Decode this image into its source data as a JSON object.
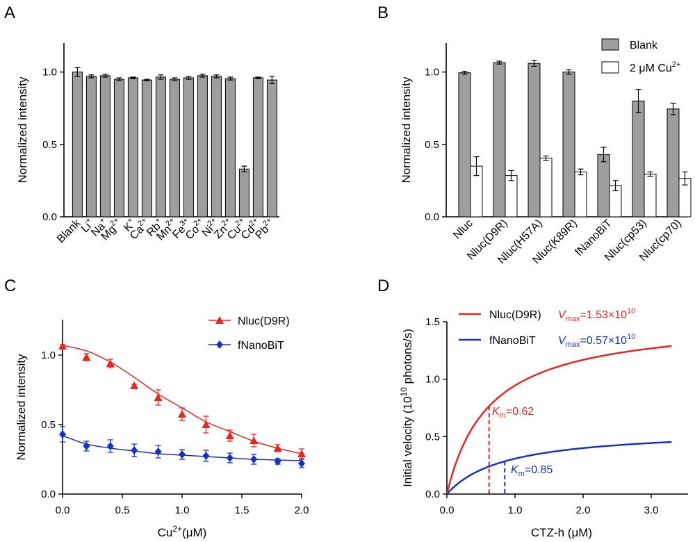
{
  "chart_data": [
    {
      "panel": "A",
      "type": "bar",
      "ylabel": "Normalized intensity",
      "ylim": [
        0,
        1.2
      ],
      "yticks": [
        "0.0",
        "0.5",
        "1.0"
      ],
      "categories": [
        {
          "base": "Blank",
          "sup": ""
        },
        {
          "base": "Li",
          "sup": "+"
        },
        {
          "base": "Na",
          "sup": "+"
        },
        {
          "base": "Mg",
          "sup": "2+"
        },
        {
          "base": "K",
          "sup": "+"
        },
        {
          "base": "Ca",
          "sup": "2+"
        },
        {
          "base": "Rb",
          "sup": "+"
        },
        {
          "base": "Mn",
          "sup": "2+"
        },
        {
          "base": "Fe",
          "sup": "3+"
        },
        {
          "base": "Co",
          "sup": "2+"
        },
        {
          "base": "Ni",
          "sup": "2+"
        },
        {
          "base": "Zn",
          "sup": "2+"
        },
        {
          "base": "Cu",
          "sup": "2+"
        },
        {
          "base": "Cd",
          "sup": "2+"
        },
        {
          "base": "Pb",
          "sup": "2+"
        }
      ],
      "values": [
        1.0,
        0.97,
        0.975,
        0.95,
        0.96,
        0.945,
        0.965,
        0.95,
        0.96,
        0.975,
        0.97,
        0.955,
        0.33,
        0.96,
        0.945
      ],
      "errors": [
        0.03,
        0.01,
        0.01,
        0.01,
        0.005,
        0.005,
        0.015,
        0.01,
        0.01,
        0.01,
        0.01,
        0.01,
        0.02,
        0.005,
        0.025
      ],
      "bar_color": "#9e9e9e"
    },
    {
      "panel": "B",
      "type": "bar",
      "ylabel": "Normalized intensity",
      "ylim": [
        0,
        1.2
      ],
      "yticks": [
        "0.0",
        "0.5",
        "1.0"
      ],
      "categories": [
        "Nluc",
        "Nluc(D9R)",
        "Nluc(H57A)",
        "Nluc(K89R)",
        "fNanoBiT",
        "Nluc(cp53)",
        "Nluc(cp70)"
      ],
      "series": [
        {
          "name": "Blank",
          "values": [
            0.995,
            1.065,
            1.06,
            1.0,
            0.43,
            0.8,
            0.745
          ],
          "errors": [
            0.01,
            0.01,
            0.02,
            0.015,
            0.05,
            0.08,
            0.04
          ],
          "color": "#9e9e9e"
        },
        {
          "name": "2 μM Cu",
          "name_sup": "2+",
          "values": [
            0.35,
            0.285,
            0.405,
            0.31,
            0.215,
            0.295,
            0.265
          ],
          "errors": [
            0.065,
            0.035,
            0.015,
            0.02,
            0.035,
            0.015,
            0.045
          ],
          "color": "#ffffff"
        }
      ]
    },
    {
      "panel": "C",
      "type": "scatter",
      "xlabel": "Cu",
      "xlabel_sup": "2+",
      "xlabel_unit": "(μM)",
      "ylabel": "Normalized intensity",
      "xlim": [
        0,
        2.0
      ],
      "ylim": [
        0,
        1.25
      ],
      "xticks": [
        "0.0",
        "0.5",
        "1.0",
        "1.5",
        "2.0"
      ],
      "yticks": [
        "0.0",
        "0.5",
        "1.0"
      ],
      "series": [
        {
          "name": "Nluc(D9R)",
          "marker": "triangle",
          "color": "#e8251f",
          "x": [
            0,
            0.2,
            0.4,
            0.6,
            0.8,
            1.0,
            1.2,
            1.4,
            1.6,
            1.8,
            2.0
          ],
          "y": [
            1.065,
            0.985,
            0.94,
            0.78,
            0.695,
            0.575,
            0.5,
            0.42,
            0.385,
            0.33,
            0.29
          ],
          "errors": [
            0.01,
            0.025,
            0.03,
            0.01,
            0.055,
            0.045,
            0.06,
            0.04,
            0.045,
            0.025,
            0.035
          ],
          "fit": [
            1.07,
            1.03,
            0.95,
            0.84,
            0.72,
            0.62,
            0.52,
            0.45,
            0.38,
            0.33,
            0.29
          ]
        },
        {
          "name": "fNanoBiT",
          "marker": "diamond",
          "color": "#1630c8",
          "x": [
            0,
            0.2,
            0.4,
            0.6,
            0.8,
            1.0,
            1.2,
            1.4,
            1.6,
            1.8,
            2.0
          ],
          "y": [
            0.43,
            0.345,
            0.345,
            0.315,
            0.305,
            0.285,
            0.275,
            0.26,
            0.25,
            0.235,
            0.22
          ],
          "errors": [
            0.055,
            0.035,
            0.045,
            0.045,
            0.045,
            0.035,
            0.04,
            0.035,
            0.035,
            0.02,
            0.03
          ],
          "fit": [
            0.42,
            0.36,
            0.33,
            0.31,
            0.29,
            0.28,
            0.27,
            0.26,
            0.25,
            0.245,
            0.24
          ]
        }
      ]
    },
    {
      "panel": "D",
      "type": "line",
      "xlabel": "CTZ-h (μM)",
      "ylabel_pre": "Initial velocity (10",
      "ylabel_sup": "10",
      "ylabel_post": " photons/s)",
      "xlim": [
        0,
        3.4
      ],
      "ylim": [
        0,
        1.5
      ],
      "xticks": [
        "0.0",
        "1.0",
        "2.0",
        "3.0"
      ],
      "yticks": [
        "0.0",
        "0.5",
        "1.0",
        "1.5"
      ],
      "x_max_data": 3.3,
      "series": [
        {
          "name": "Nluc(D9R)",
          "color": "#e8251f",
          "Vmax": 1.53,
          "Km": 0.62,
          "vmax_label": {
            "v": "V",
            "sub": "max",
            "eq": "=1.53×10",
            "sup": "10"
          },
          "km_label": {
            "k": "K",
            "sub": "m",
            "eq": "=0.62"
          }
        },
        {
          "name": "fNanoBiT",
          "color": "#1630c8",
          "Vmax": 0.57,
          "Km": 0.85,
          "vmax_label": {
            "v": "V",
            "sub": "max",
            "eq": "=0.57×10",
            "sup": "10"
          },
          "km_label": {
            "k": "K",
            "sub": "m",
            "eq": "=0.85"
          }
        }
      ]
    }
  ]
}
